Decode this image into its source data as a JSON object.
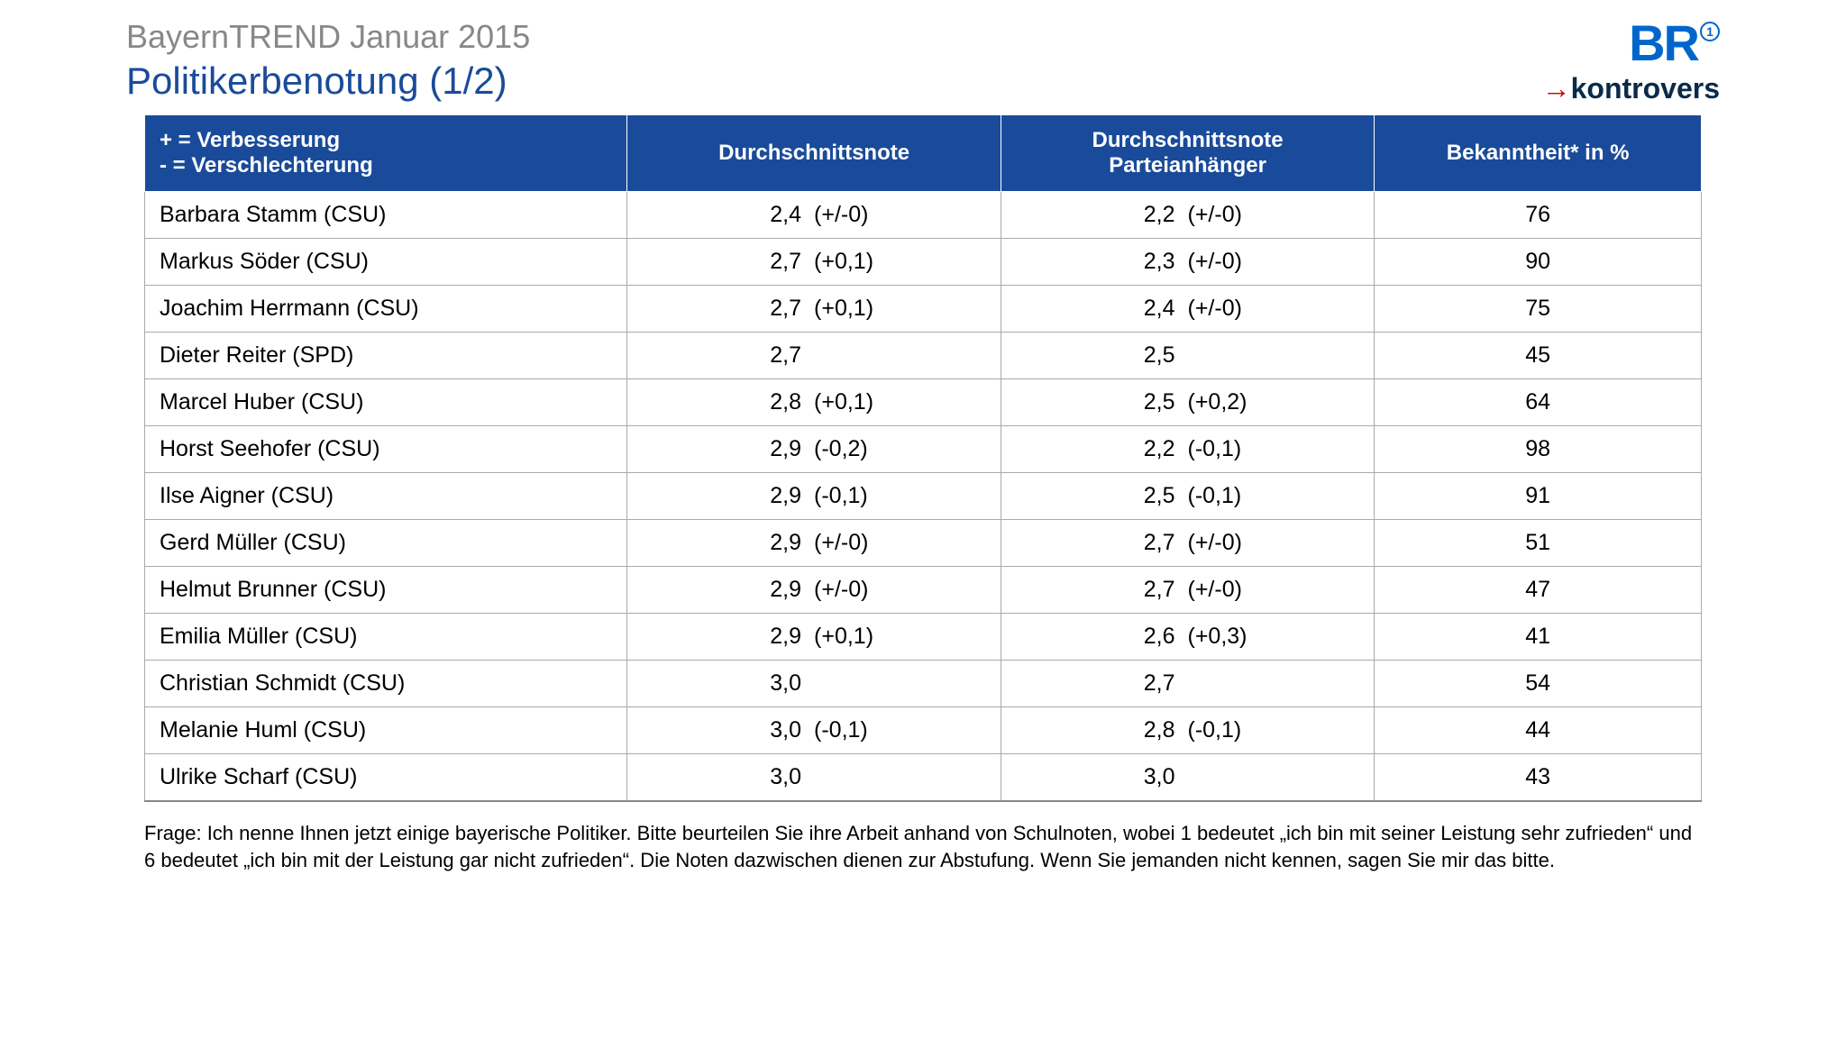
{
  "header": {
    "supertitle": "BayernTREND Januar 2015",
    "title": "Politikerbenotung (1/2)"
  },
  "logos": {
    "br_text": "BR",
    "br_mark": "1",
    "kontrovers_arrow": "→",
    "kontrovers_text": "kontrovers"
  },
  "colors": {
    "header_bg": "#1a4b9a",
    "header_text": "#ffffff",
    "title_color": "#1a4b9a",
    "supertitle_color": "#888888",
    "row_border": "#aaaaaa",
    "body_text": "#000000",
    "br_blue": "#0066cc",
    "kontrovers_navy": "#0a2a4a",
    "kontrovers_arrow": "#cc0000"
  },
  "table": {
    "columns": [
      "+ = Verbesserung\n- = Verschlechterung",
      "Durchschnittsnote",
      "Durchschnittsnote Parteianhänger",
      "Bekanntheit* in %"
    ],
    "rows": [
      {
        "name": "Barbara Stamm (CSU)",
        "grade": "2,4",
        "grade_delta": "(+/-0)",
        "party": "2,2",
        "party_delta": "(+/-0)",
        "fame": "76"
      },
      {
        "name": "Markus Söder (CSU)",
        "grade": "2,7",
        "grade_delta": "(+0,1)",
        "party": "2,3",
        "party_delta": "(+/-0)",
        "fame": "90"
      },
      {
        "name": "Joachim Herrmann (CSU)",
        "grade": "2,7",
        "grade_delta": "(+0,1)",
        "party": "2,4",
        "party_delta": "(+/-0)",
        "fame": "75"
      },
      {
        "name": "Dieter Reiter (SPD)",
        "grade": "2,7",
        "grade_delta": "",
        "party": "2,5",
        "party_delta": "",
        "fame": "45"
      },
      {
        "name": "Marcel Huber (CSU)",
        "grade": "2,8",
        "grade_delta": "(+0,1)",
        "party": "2,5",
        "party_delta": "(+0,2)",
        "fame": "64"
      },
      {
        "name": "Horst Seehofer (CSU)",
        "grade": "2,9",
        "grade_delta": "(-0,2)",
        "party": "2,2",
        "party_delta": "(-0,1)",
        "fame": "98"
      },
      {
        "name": "Ilse Aigner (CSU)",
        "grade": "2,9",
        "grade_delta": "(-0,1)",
        "party": "2,5",
        "party_delta": "(-0,1)",
        "fame": "91"
      },
      {
        "name": "Gerd Müller (CSU)",
        "grade": "2,9",
        "grade_delta": "(+/-0)",
        "party": "2,7",
        "party_delta": "(+/-0)",
        "fame": "51"
      },
      {
        "name": "Helmut Brunner (CSU)",
        "grade": "2,9",
        "grade_delta": "(+/-0)",
        "party": "2,7",
        "party_delta": "(+/-0)",
        "fame": "47"
      },
      {
        "name": "Emilia Müller (CSU)",
        "grade": "2,9",
        "grade_delta": "(+0,1)",
        "party": "2,6",
        "party_delta": "(+0,3)",
        "fame": "41"
      },
      {
        "name": "Christian Schmidt (CSU)",
        "grade": "3,0",
        "grade_delta": "",
        "party": "2,7",
        "party_delta": "",
        "fame": "54"
      },
      {
        "name": "Melanie Huml (CSU)",
        "grade": "3,0",
        "grade_delta": "(-0,1)",
        "party": "2,8",
        "party_delta": "(-0,1)",
        "fame": "44"
      },
      {
        "name": "Ulrike Scharf (CSU)",
        "grade": "3,0",
        "grade_delta": "",
        "party": "3,0",
        "party_delta": "",
        "fame": "43"
      }
    ]
  },
  "footnote": "Frage: Ich nenne Ihnen jetzt einige bayerische Politiker. Bitte beurteilen Sie ihre Arbeit anhand von Schulnoten, wobei 1 bedeutet „ich bin mit seiner Leistung sehr zufrieden“ und 6 bedeutet „ich bin mit der Leistung gar nicht zufrieden“. Die Noten dazwischen dienen zur Abstufung. Wenn Sie jemanden nicht kennen, sagen Sie mir das bitte."
}
